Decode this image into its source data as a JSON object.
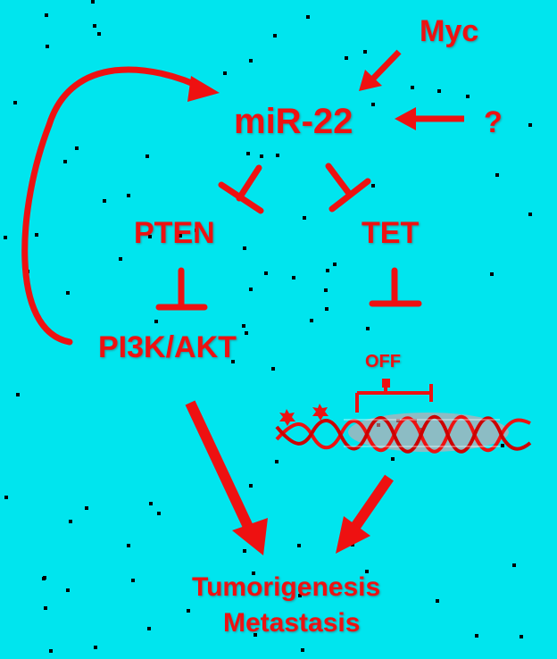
{
  "labels": {
    "myc": "Myc",
    "mir22": "miR-22",
    "unknown": "?",
    "pten": "PTEN",
    "tet": "TET",
    "pi3k_akt": "PI3K/AKT",
    "off": "OFF",
    "tumorigenesis": "Tumorigenesis",
    "metastasis": "Metastasis"
  },
  "colors": {
    "background": "#00e5ee",
    "accent": "#ee1111"
  },
  "icons": {
    "methyl_marks": "star-icon",
    "dna": "dna-helix-icon"
  }
}
